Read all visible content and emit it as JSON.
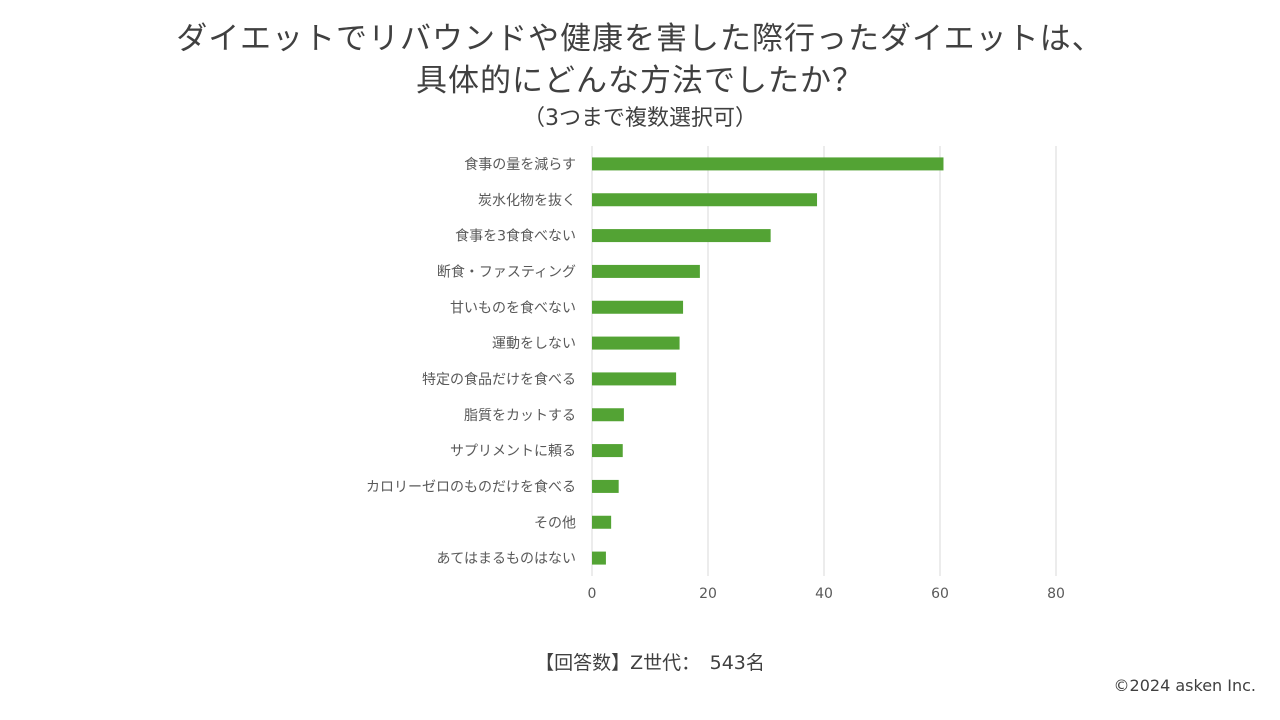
{
  "title": {
    "line1": "ダイエットでリバウンドや健康を害した際行ったダイエットは、",
    "line2": "具体的にどんな方法でしたか？",
    "subtitle": "（3つまで複数選択可）"
  },
  "footer": {
    "respondents": "【回答数】Z世代：　543名",
    "copyright": "©2024 asken Inc."
  },
  "chart_data": {
    "type": "bar",
    "orientation": "horizontal",
    "categories": [
      "食事の量を減らす",
      "炭水化物を抜く",
      "食事を3食食べない",
      "断食・ファスティング",
      "甘いものを食べない",
      "運動をしない",
      "特定の食品だけを食べる",
      "脂質をカットする",
      "サプリメントに頼る",
      "カロリーゼロのものだけを食べる",
      "その他",
      "あてはまるものはない"
    ],
    "values": [
      60.6,
      38.8,
      30.8,
      18.6,
      15.7,
      15.1,
      14.5,
      5.5,
      5.3,
      4.6,
      3.3,
      2.4
    ],
    "xlim": [
      0,
      80
    ],
    "xticks": [
      0,
      20,
      40,
      60,
      80
    ],
    "grid": true,
    "bar_color": "#53a334",
    "grid_color": "#d9d9d9",
    "tick_color": "#595959"
  }
}
